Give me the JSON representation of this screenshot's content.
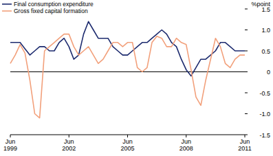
{
  "chart_data": {
    "type": "line",
    "y_label": "%point",
    "categories": [
      "Jun 1999",
      null,
      null,
      null,
      null,
      null,
      null,
      null,
      null,
      null,
      null,
      null,
      "Jun 2002",
      null,
      null,
      null,
      null,
      null,
      null,
      null,
      null,
      null,
      null,
      null,
      "Jun 2005",
      null,
      null,
      null,
      null,
      null,
      null,
      null,
      null,
      null,
      null,
      null,
      "Jun 2008",
      null,
      null,
      null,
      null,
      null,
      null,
      null,
      null,
      null,
      null,
      null,
      "Jun 2011"
    ],
    "series": [
      {
        "name": "Final consumption expenditure",
        "color": "#1c2a6e",
        "values": [
          0.7,
          0.7,
          0.7,
          0.55,
          0.4,
          0.5,
          0.6,
          0.6,
          0.5,
          0.5,
          0.7,
          0.8,
          0.6,
          0.3,
          0.4,
          0.9,
          1.2,
          1.0,
          0.8,
          0.8,
          0.8,
          0.6,
          0.5,
          0.4,
          0.4,
          0.5,
          0.6,
          0.7,
          0.7,
          0.8,
          0.9,
          1.0,
          0.9,
          0.7,
          0.6,
          0.3,
          0.05,
          -0.1,
          0.1,
          0.3,
          0.3,
          0.4,
          0.5,
          0.7,
          0.7,
          0.6,
          0.5,
          0.5,
          0.5
        ]
      },
      {
        "name": "Gross fixed capital formation",
        "color": "#f2a07b",
        "values": [
          0.2,
          0.4,
          0.65,
          0.45,
          -0.2,
          -1.0,
          -1.1,
          0.5,
          0.6,
          0.7,
          0.8,
          0.9,
          0.9,
          0.6,
          0.4,
          0.5,
          0.6,
          0.4,
          0.2,
          0.3,
          0.5,
          0.7,
          0.7,
          0.6,
          0.7,
          0.7,
          0.1,
          0.0,
          0.1,
          0.7,
          0.85,
          0.8,
          0.6,
          0.6,
          0.8,
          0.7,
          0.65,
          0.05,
          -0.6,
          -0.8,
          -0.2,
          0.3,
          0.8,
          0.6,
          0.2,
          0.1,
          0.3,
          0.4,
          0.4
        ]
      }
    ],
    "ylim": [
      -1.5,
      1.5
    ],
    "yticks": [
      -1.5,
      {
        "value": -1,
        "label": "-1.0"
      },
      -0.5,
      0,
      0.5,
      {
        "value": 1,
        "label": "1.0"
      },
      1.5
    ],
    "legend": "upper left",
    "grid": false
  }
}
